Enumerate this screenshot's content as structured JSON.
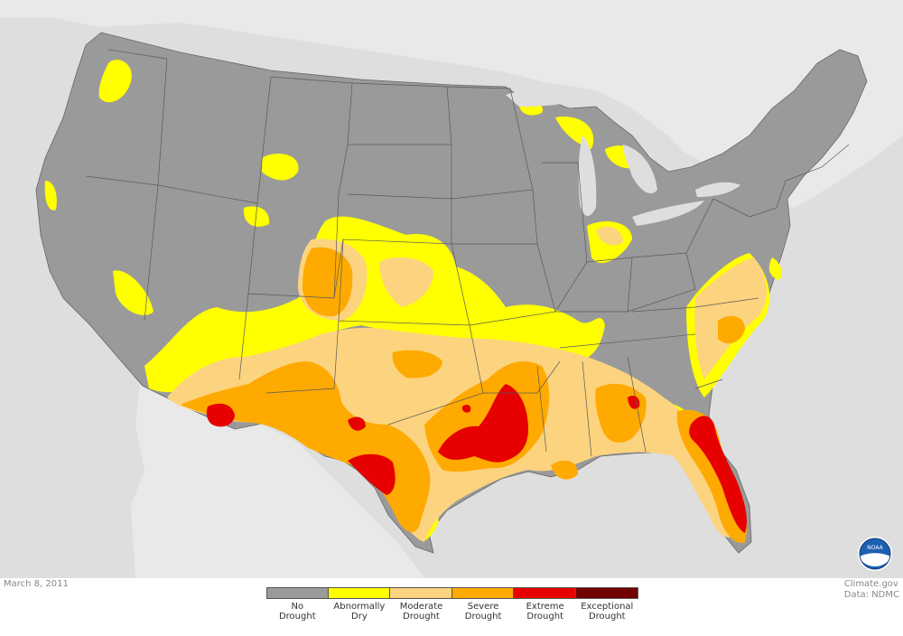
{
  "date": "March 8, 2011",
  "credit_line1": "Climate.gov",
  "credit_line2": "Data: NDMC",
  "legend": [
    {
      "line1": "No",
      "line2": "Drought",
      "color": "#9a9a9a"
    },
    {
      "line1": "Abnormally",
      "line2": "Dry",
      "color": "#ffff00"
    },
    {
      "line1": "Moderate",
      "line2": "Drought",
      "color": "#fcd37f"
    },
    {
      "line1": "Severe",
      "line2": "Drought",
      "color": "#ffaa00"
    },
    {
      "line1": "Extreme",
      "line2": "Drought",
      "color": "#e60000"
    },
    {
      "line1": "Exceptional",
      "line2": "Drought",
      "color": "#730000"
    }
  ],
  "noaa_logo_text": "NOAA",
  "colors": {
    "background": "#dedede",
    "land_outside": "#e8e8e8",
    "borders": "#5a5a5a"
  }
}
